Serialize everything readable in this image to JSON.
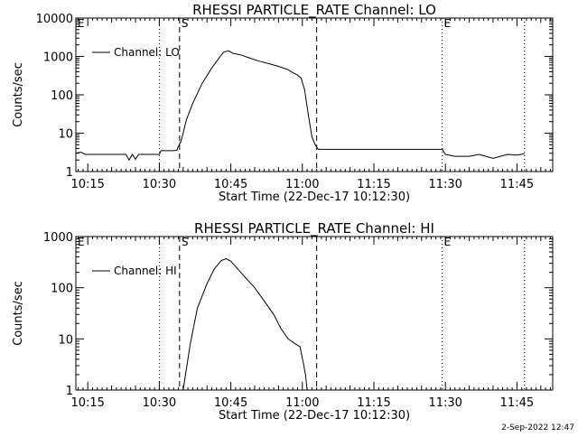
{
  "footer": {
    "date": "2-Sep-2022 12:47"
  },
  "chart_data": [
    {
      "type": "line",
      "title": "RHESSI PARTICLE_RATE Channel: LO",
      "xlabel": "Start Time (22-Dec-17 10:12:30)",
      "ylabel": "Counts/sec",
      "x_unit": "clock time HH:MM",
      "xlim": [
        "10:12:30",
        "11:52:30"
      ],
      "x_ticks": [
        "10:15",
        "10:30",
        "10:45",
        "11:00",
        "11:15",
        "11:30",
        "11:45"
      ],
      "yscale": "log",
      "ylim": [
        1,
        10000
      ],
      "y_ticks": [
        "1",
        "10",
        "100",
        "1000",
        "10000"
      ],
      "legend": {
        "label": "Channel: LO",
        "placement": "top-left"
      },
      "markers": [
        {
          "label": "E",
          "time": "10:12:30",
          "style": "none"
        },
        {
          "label": "",
          "time": "10:30:00",
          "style": "dotted"
        },
        {
          "label": "S",
          "time": "10:34:15",
          "style": "dashed"
        },
        {
          "label": "",
          "time": "11:03:00",
          "style": "dashed"
        },
        {
          "label": "E",
          "time": "11:29:20",
          "style": "dotted"
        },
        {
          "label": "",
          "time": "11:46:35",
          "style": "dotted"
        }
      ],
      "series": [
        {
          "name": "Channel: LO",
          "x": [
            "10:12:30",
            "10:13:30",
            "10:14:30",
            "10:16:00",
            "10:20:00",
            "10:23:00",
            "10:23:40",
            "10:24:20",
            "10:25:00",
            "10:25:40",
            "10:26:20",
            "10:27:00",
            "10:28:30",
            "10:30:00",
            "10:30:20",
            "10:33:00",
            "10:33:40",
            "10:34:00",
            "10:34:30",
            "10:35:00",
            "10:35:40",
            "10:37:00",
            "10:39:00",
            "10:41:00",
            "10:42:30",
            "10:43:30",
            "10:44:30",
            "10:45:30",
            "10:47:00",
            "10:49:00",
            "10:51:00",
            "10:53:00",
            "10:55:00",
            "10:57:00",
            "10:58:00",
            "10:59:00",
            "10:59:45",
            "11:00:30",
            "11:01:15",
            "11:02:00",
            "11:02:40",
            "11:03:20",
            "11:05:00",
            "11:10:00",
            "11:15:00",
            "11:20:00",
            "11:25:00",
            "11:29:20",
            "11:30:00",
            "11:32:00",
            "11:35:00",
            "11:37:00",
            "11:40:00",
            "11:43:00",
            "11:45:00",
            "11:46:35"
          ],
          "y": [
            3.0,
            3.2,
            2.8,
            2.8,
            2.8,
            2.8,
            2.0,
            2.8,
            2.1,
            2.8,
            2.8,
            2.8,
            2.8,
            2.8,
            3.5,
            3.5,
            3.6,
            4.5,
            6.0,
            10,
            22,
            60,
            200,
            500,
            900,
            1300,
            1400,
            1200,
            1100,
            900,
            750,
            650,
            550,
            450,
            380,
            330,
            270,
            130,
            30,
            8,
            5,
            3.8,
            3.8,
            3.8,
            3.8,
            3.8,
            3.8,
            3.8,
            2.8,
            2.5,
            2.5,
            2.8,
            2.2,
            2.8,
            2.7,
            2.9
          ]
        }
      ]
    },
    {
      "type": "line",
      "title": "RHESSI PARTICLE_RATE Channel: HI",
      "xlabel": "Start Time (22-Dec-17 10:12:30)",
      "ylabel": "Counts/sec",
      "x_unit": "clock time HH:MM",
      "xlim": [
        "10:12:30",
        "11:52:30"
      ],
      "x_ticks": [
        "10:15",
        "10:30",
        "10:45",
        "11:00",
        "11:15",
        "11:30",
        "11:45"
      ],
      "yscale": "log",
      "ylim": [
        1,
        1000
      ],
      "y_ticks": [
        "1",
        "10",
        "100",
        "1000"
      ],
      "legend": {
        "label": "Channel: HI",
        "placement": "top-left"
      },
      "markers": [
        {
          "label": "E",
          "time": "10:12:30",
          "style": "none"
        },
        {
          "label": "",
          "time": "10:30:00",
          "style": "dotted"
        },
        {
          "label": "S",
          "time": "10:34:15",
          "style": "dashed"
        },
        {
          "label": "",
          "time": "11:03:00",
          "style": "dashed"
        },
        {
          "label": "E",
          "time": "11:29:20",
          "style": "dotted"
        },
        {
          "label": "",
          "time": "11:46:35",
          "style": "dotted"
        }
      ],
      "series": [
        {
          "name": "Channel: HI",
          "x": [
            "10:35:00",
            "10:35:30",
            "10:36:30",
            "10:38:00",
            "10:40:00",
            "10:41:30",
            "10:43:00",
            "10:44:00",
            "10:45:00",
            "10:46:30",
            "10:48:00",
            "10:50:00",
            "10:52:00",
            "10:54:00",
            "10:55:30",
            "10:57:00",
            "10:58:30",
            "10:59:30",
            "11:00:10",
            "11:00:40",
            "11:01:00"
          ],
          "y": [
            1.0,
            2.0,
            8.0,
            40,
            120,
            230,
            340,
            370,
            330,
            230,
            160,
            100,
            55,
            30,
            16,
            10,
            8,
            7,
            3.5,
            2.0,
            1.0
          ]
        }
      ]
    }
  ]
}
